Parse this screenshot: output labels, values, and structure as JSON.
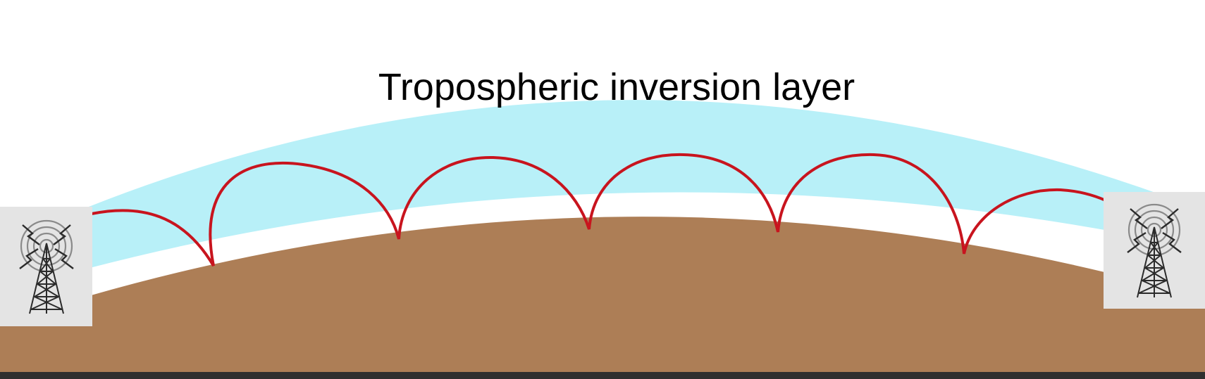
{
  "diagram": {
    "title": "Tropospheric inversion layer"
  },
  "colors": {
    "inversion_layer": "#b8f0f8",
    "ground": "#ad7e56",
    "signal_path": "#c8141e",
    "tower_box": "#e4e4e4",
    "tower": "#2b2b2b",
    "bottom_bar": "#2f2f2f"
  },
  "icons": {
    "left": "radio-tower-icon",
    "right": "radio-tower-icon"
  }
}
